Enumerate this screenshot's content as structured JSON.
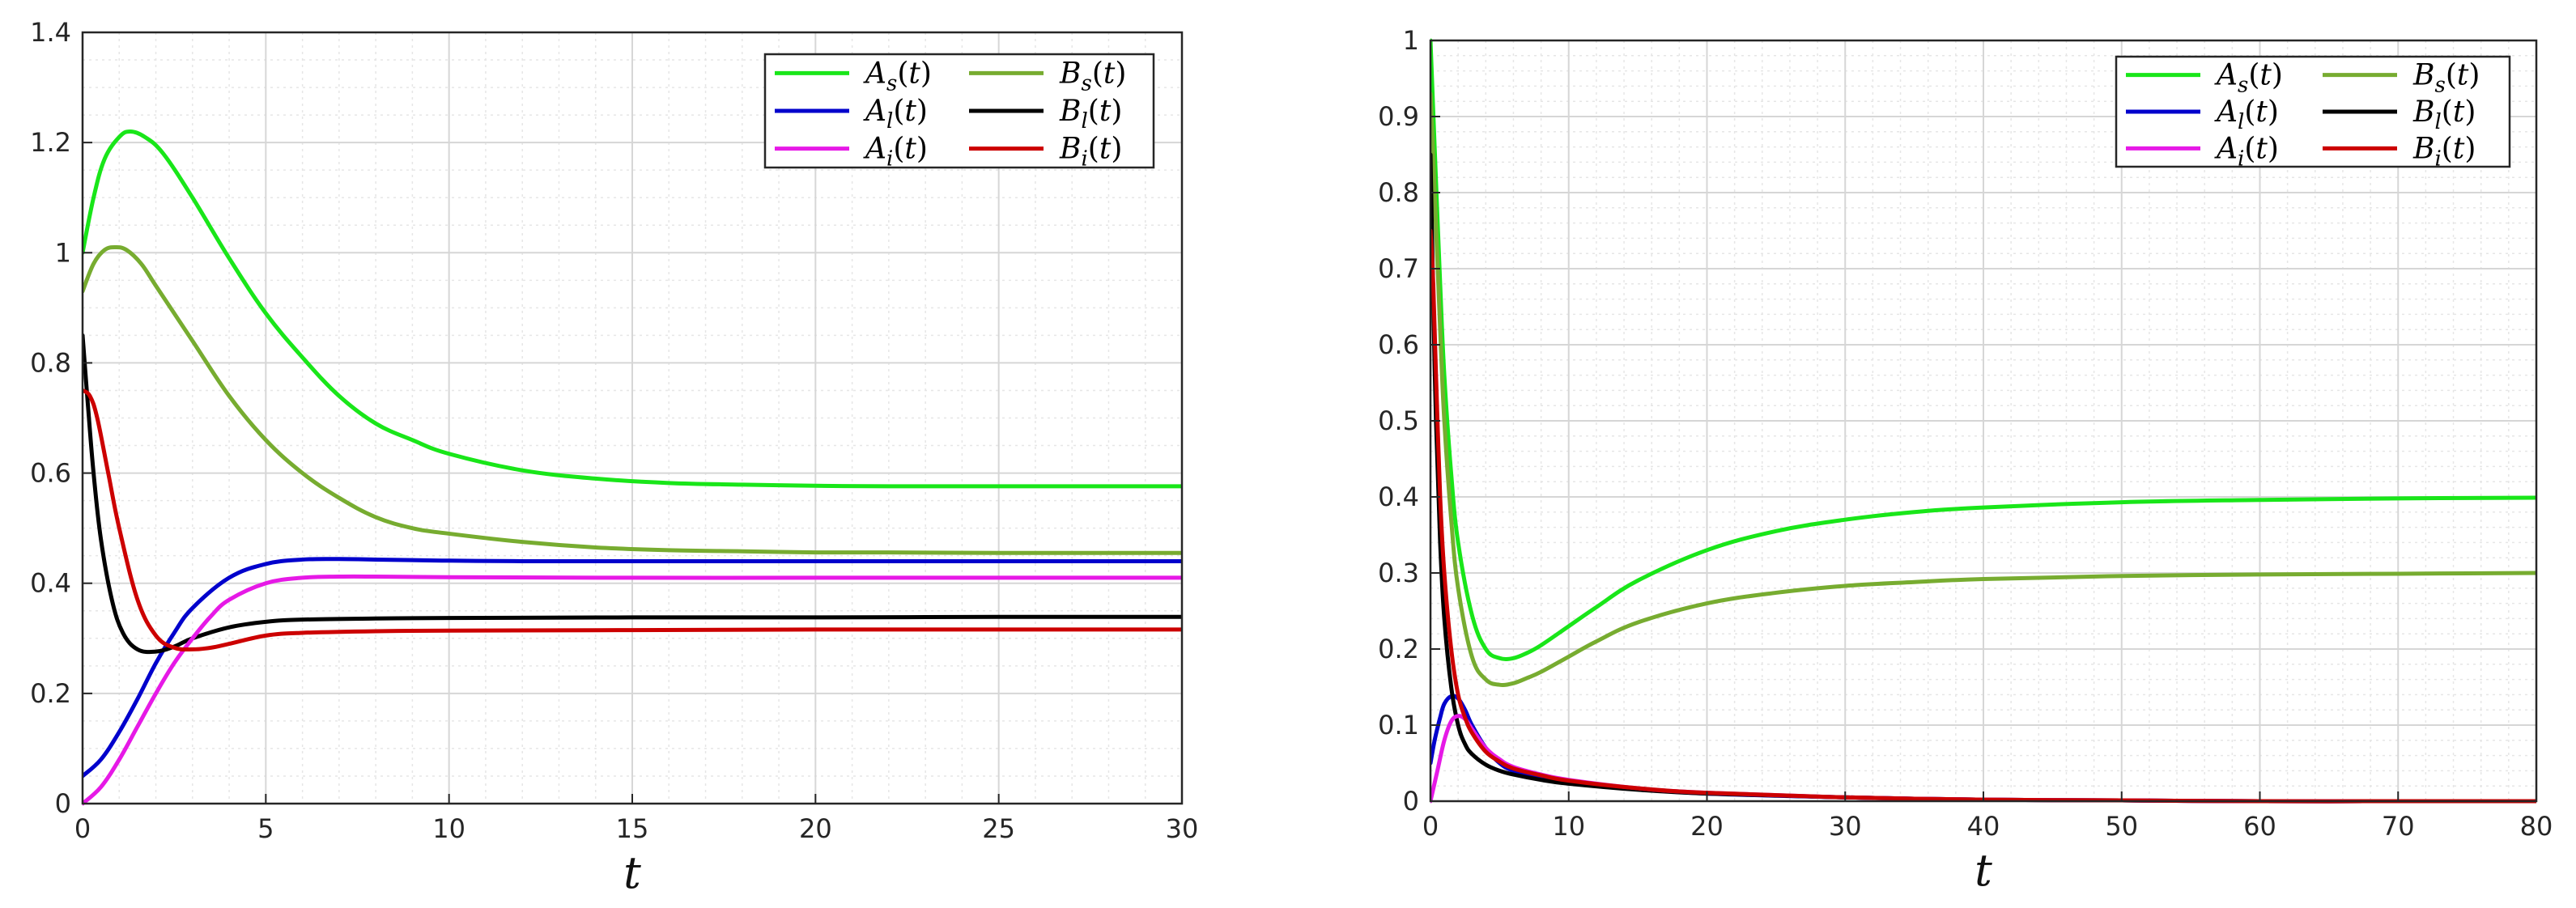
{
  "colors": {
    "A_s": "#19e619",
    "B_s": "#77ac30",
    "A_l": "#0000cc",
    "B_l": "#000000",
    "A_i": "#e619e6",
    "B_i": "#cc0000"
  },
  "chart_data": [
    {
      "type": "line",
      "title": "",
      "xlabel": "t",
      "ylabel": "",
      "xlim": [
        0,
        30
      ],
      "ylim": [
        0,
        1.4
      ],
      "grid": true,
      "minor_grid": true,
      "legend_placement": "top-right",
      "xticks": [
        0,
        5,
        10,
        15,
        20,
        25,
        30
      ],
      "xtick_labels": [
        "0",
        "5",
        "10",
        "15",
        "20",
        "25",
        "30"
      ],
      "yticks": [
        0,
        0.2,
        0.4,
        0.6,
        0.8,
        1,
        1.2,
        1.4
      ],
      "ytick_labels": [
        "0",
        "0.2",
        "0.4",
        "0.6",
        "0.8",
        "1",
        "1.2",
        "1.4"
      ],
      "series": [
        {
          "key": "A_s",
          "name": "A_s(t)",
          "legend": {
            "base": "A",
            "sub": "s"
          },
          "color_key": "A_s",
          "x": [
            0,
            0.3,
            0.6,
            1,
            1.3,
            1.7,
            2.2,
            3,
            4,
            5,
            6,
            7,
            8,
            9,
            10,
            12,
            14,
            16,
            18,
            20,
            22,
            25,
            28,
            30
          ],
          "y": [
            1.0,
            1.1,
            1.17,
            1.21,
            1.22,
            1.21,
            1.18,
            1.1,
            0.99,
            0.89,
            0.81,
            0.74,
            0.69,
            0.66,
            0.635,
            0.605,
            0.59,
            0.582,
            0.579,
            0.577,
            0.576,
            0.576,
            0.576,
            0.576
          ]
        },
        {
          "key": "B_s",
          "name": "B_s(t)",
          "legend": {
            "base": "B",
            "sub": "s"
          },
          "color_key": "B_s",
          "x": [
            0,
            0.3,
            0.6,
            0.9,
            1.2,
            1.6,
            2,
            3,
            4,
            5,
            6,
            7,
            8,
            9,
            10,
            12,
            14,
            16,
            18,
            20,
            22,
            25,
            28,
            30
          ],
          "y": [
            0.93,
            0.98,
            1.005,
            1.01,
            1.005,
            0.98,
            0.94,
            0.84,
            0.74,
            0.66,
            0.6,
            0.555,
            0.52,
            0.5,
            0.49,
            0.475,
            0.465,
            0.46,
            0.458,
            0.456,
            0.456,
            0.455,
            0.455,
            0.455
          ]
        },
        {
          "key": "A_l",
          "name": "A_l(t)",
          "legend": {
            "base": "A",
            "sub": "l"
          },
          "color_key": "A_l",
          "x": [
            0,
            0.5,
            1,
            1.5,
            2,
            2.5,
            3,
            4,
            5,
            6,
            7,
            8,
            10,
            12,
            15,
            20,
            25,
            30
          ],
          "y": [
            0.05,
            0.08,
            0.13,
            0.19,
            0.255,
            0.31,
            0.355,
            0.41,
            0.435,
            0.443,
            0.444,
            0.443,
            0.441,
            0.44,
            0.44,
            0.44,
            0.44,
            0.44
          ]
        },
        {
          "key": "B_l",
          "name": "B_l(t)",
          "legend": {
            "base": "B",
            "sub": "l"
          },
          "color_key": "B_l",
          "x": [
            0,
            0.15,
            0.3,
            0.5,
            0.8,
            1.1,
            1.5,
            2,
            2.5,
            3,
            4,
            5,
            6,
            8,
            10,
            15,
            20,
            25,
            30
          ],
          "y": [
            0.85,
            0.72,
            0.6,
            0.48,
            0.37,
            0.31,
            0.28,
            0.276,
            0.285,
            0.3,
            0.32,
            0.33,
            0.334,
            0.336,
            0.337,
            0.338,
            0.338,
            0.339,
            0.339
          ]
        },
        {
          "key": "A_i",
          "name": "A_i(t)",
          "legend": {
            "base": "A",
            "sub": "i"
          },
          "color_key": "A_i",
          "x": [
            0,
            0.5,
            1,
            1.5,
            2,
            2.5,
            3,
            3.5,
            4,
            5,
            6,
            7,
            8,
            10,
            15,
            20,
            25,
            30
          ],
          "y": [
            0.0,
            0.03,
            0.08,
            0.14,
            0.2,
            0.255,
            0.3,
            0.34,
            0.37,
            0.4,
            0.41,
            0.412,
            0.412,
            0.411,
            0.41,
            0.41,
            0.41,
            0.41
          ]
        },
        {
          "key": "B_i",
          "name": "B_i(t)",
          "legend": {
            "base": "B",
            "sub": "i"
          },
          "color_key": "B_i",
          "x": [
            0,
            0.2,
            0.4,
            0.7,
            1,
            1.5,
            2,
            2.5,
            3,
            3.5,
            4,
            5,
            6,
            8,
            10,
            15,
            20,
            25,
            30
          ],
          "y": [
            0.75,
            0.74,
            0.7,
            0.6,
            0.5,
            0.37,
            0.305,
            0.283,
            0.28,
            0.283,
            0.29,
            0.305,
            0.31,
            0.313,
            0.314,
            0.315,
            0.316,
            0.316,
            0.316
          ]
        }
      ]
    },
    {
      "type": "line",
      "title": "",
      "xlabel": "t",
      "ylabel": "",
      "xlim": [
        0,
        80
      ],
      "ylim": [
        0,
        1
      ],
      "grid": true,
      "minor_grid": true,
      "legend_placement": "top-right",
      "xticks": [
        0,
        10,
        20,
        30,
        40,
        50,
        60,
        70,
        80
      ],
      "xtick_labels": [
        "0",
        "10",
        "20",
        "30",
        "40",
        "50",
        "60",
        "70",
        "80"
      ],
      "yticks": [
        0,
        0.1,
        0.2,
        0.3,
        0.4,
        0.5,
        0.6,
        0.7,
        0.8,
        0.9,
        1
      ],
      "ytick_labels": [
        "0",
        "0.1",
        "0.2",
        "0.3",
        "0.4",
        "0.5",
        "0.6",
        "0.7",
        "0.8",
        "0.9",
        "1"
      ],
      "series": [
        {
          "key": "A_s",
          "name": "A_s(t)",
          "legend": {
            "base": "A",
            "sub": "s"
          },
          "color_key": "A_s",
          "x": [
            0,
            0.3,
            0.7,
            1,
            1.5,
            2,
            3,
            4,
            5,
            6,
            7,
            8,
            10,
            12,
            15,
            20,
            25,
            30,
            35,
            40,
            50,
            60,
            70,
            80
          ],
          "y": [
            1.0,
            0.86,
            0.68,
            0.56,
            0.43,
            0.34,
            0.245,
            0.2,
            0.188,
            0.188,
            0.195,
            0.205,
            0.23,
            0.255,
            0.29,
            0.33,
            0.355,
            0.37,
            0.38,
            0.386,
            0.393,
            0.396,
            0.398,
            0.399
          ]
        },
        {
          "key": "B_s",
          "name": "B_s(t)",
          "legend": {
            "base": "B",
            "sub": "s"
          },
          "color_key": "B_s",
          "x": [
            0,
            0.3,
            0.7,
            1,
            1.5,
            2,
            3,
            4,
            5,
            6,
            7,
            8,
            10,
            12,
            15,
            20,
            25,
            30,
            35,
            40,
            50,
            60,
            70,
            80
          ],
          "y": [
            0.93,
            0.8,
            0.62,
            0.5,
            0.37,
            0.28,
            0.19,
            0.16,
            0.153,
            0.155,
            0.162,
            0.17,
            0.19,
            0.21,
            0.235,
            0.26,
            0.274,
            0.283,
            0.288,
            0.292,
            0.296,
            0.298,
            0.299,
            0.3
          ]
        },
        {
          "key": "A_l",
          "name": "A_l(t)",
          "legend": {
            "base": "A",
            "sub": "l"
          },
          "color_key": "A_l",
          "x": [
            0,
            0.3,
            0.7,
            1,
            1.5,
            2,
            2.5,
            3,
            4,
            5,
            6,
            8,
            10,
            15,
            20,
            30,
            40,
            50,
            60,
            70,
            80
          ],
          "y": [
            0.05,
            0.08,
            0.11,
            0.128,
            0.138,
            0.135,
            0.12,
            0.1,
            0.07,
            0.05,
            0.04,
            0.03,
            0.025,
            0.016,
            0.01,
            0.005,
            0.002,
            0.001,
            0.0,
            0.0,
            0.0
          ]
        },
        {
          "key": "B_l",
          "name": "B_l(t)",
          "legend": {
            "base": "B",
            "sub": "l"
          },
          "color_key": "B_l",
          "x": [
            0,
            0.2,
            0.4,
            0.7,
            1,
            1.5,
            2,
            2.5,
            3,
            4,
            5,
            6,
            8,
            10,
            15,
            20,
            30,
            40,
            50,
            60,
            70,
            80
          ],
          "y": [
            0.85,
            0.66,
            0.5,
            0.34,
            0.24,
            0.15,
            0.1,
            0.075,
            0.062,
            0.048,
            0.04,
            0.035,
            0.028,
            0.023,
            0.015,
            0.01,
            0.005,
            0.002,
            0.001,
            0.0,
            0.0,
            0.0
          ]
        },
        {
          "key": "A_i",
          "name": "A_i(t)",
          "legend": {
            "base": "A",
            "sub": "i"
          },
          "color_key": "A_i",
          "x": [
            0,
            0.5,
            1,
            1.5,
            2,
            2.5,
            3,
            4,
            5,
            6,
            8,
            10,
            15,
            20,
            30,
            40,
            50,
            60,
            70,
            80
          ],
          "y": [
            0.0,
            0.04,
            0.08,
            0.105,
            0.112,
            0.108,
            0.095,
            0.07,
            0.055,
            0.045,
            0.035,
            0.028,
            0.017,
            0.011,
            0.005,
            0.002,
            0.001,
            0.0,
            0.0,
            0.0
          ]
        },
        {
          "key": "B_i",
          "name": "B_i(t)",
          "legend": {
            "base": "B",
            "sub": "i"
          },
          "color_key": "B_i",
          "x": [
            0,
            0.2,
            0.4,
            0.7,
            1,
            1.5,
            2,
            2.5,
            3,
            4,
            5,
            6,
            8,
            10,
            15,
            20,
            30,
            40,
            50,
            60,
            70,
            80
          ],
          "y": [
            0.75,
            0.68,
            0.56,
            0.4,
            0.3,
            0.2,
            0.14,
            0.11,
            0.09,
            0.065,
            0.052,
            0.043,
            0.034,
            0.027,
            0.017,
            0.011,
            0.005,
            0.002,
            0.001,
            0.0,
            0.0,
            0.0
          ]
        }
      ]
    }
  ]
}
